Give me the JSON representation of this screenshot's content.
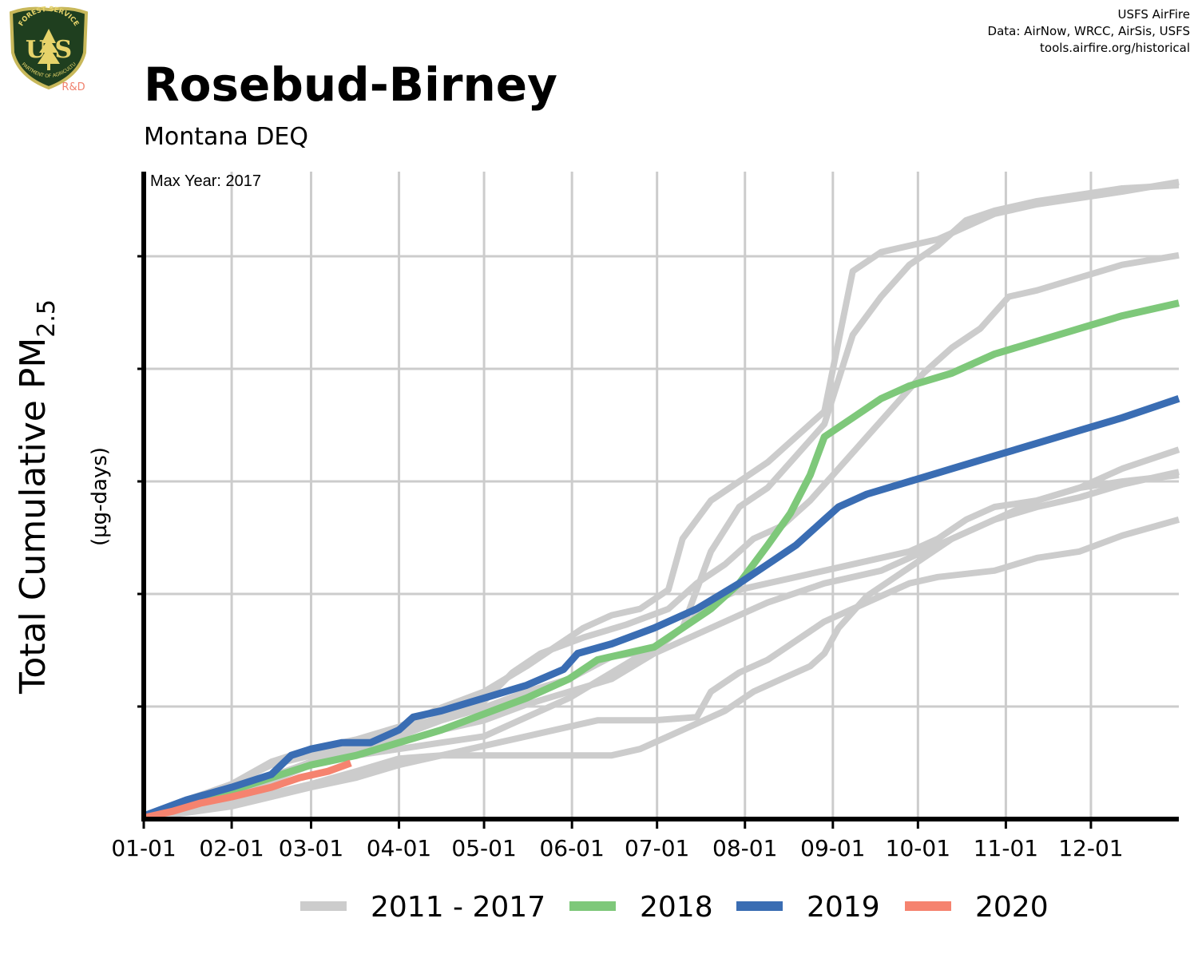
{
  "header": {
    "title": "Rosebud-Birney",
    "subtitle": "Montana DEQ",
    "credit_lines": [
      "USFS AirFire",
      "Data: AirNow, WRCC, AirSis, USFS",
      "tools.airfire.org/historical"
    ]
  },
  "logo": {
    "top_text": "FOREST SERVICE",
    "shield_text": "U S",
    "bottom_text": "DEPARTMENT OF AGRICULTURE",
    "tag": "R&D",
    "colors": {
      "shield": "#1f3f1f",
      "border": "#c8b85a",
      "tree": "#e6d36a",
      "tag": "#f0826e"
    }
  },
  "chart_data": {
    "type": "line",
    "title": "Rosebud-Birney",
    "subtitle": "Montana DEQ",
    "annotation": "Max Year: 2017",
    "ylabel": "Total Cumulative PM",
    "ylabel_subscript": "2.5",
    "yunits": "(µg-days)",
    "x_ticks": [
      "01-01",
      "02-01",
      "03-01",
      "04-01",
      "05-01",
      "06-01",
      "07-01",
      "08-01",
      "09-01",
      "10-01",
      "11-01",
      "12-01"
    ],
    "x_tick_days": [
      0,
      31,
      59,
      90,
      120,
      151,
      181,
      212,
      243,
      273,
      304,
      334
    ],
    "xlim": [
      0,
      365
    ],
    "ylim": [
      0,
      1
    ],
    "y_tick_count": 5,
    "grid": true,
    "legend_position": "bottom",
    "legend": [
      {
        "label": "2011 - 2017",
        "color": "#cccccc"
      },
      {
        "label": "2018",
        "color": "#7ec87a"
      },
      {
        "label": "2019",
        "color": "#3a6db3"
      },
      {
        "label": "2020",
        "color": "#f5836f"
      }
    ],
    "series": [
      {
        "group": "2011 - 2017",
        "color": "#cccccc",
        "points": [
          [
            0,
            0.005
          ],
          [
            10,
            0.02
          ],
          [
            20,
            0.035
          ],
          [
            31,
            0.055
          ],
          [
            45,
            0.09
          ],
          [
            59,
            0.11
          ],
          [
            75,
            0.125
          ],
          [
            90,
            0.145
          ],
          [
            105,
            0.175
          ],
          [
            120,
            0.2
          ],
          [
            135,
            0.24
          ],
          [
            145,
            0.27
          ],
          [
            155,
            0.3
          ],
          [
            165,
            0.32
          ],
          [
            175,
            0.33
          ],
          [
            185,
            0.36
          ],
          [
            190,
            0.44
          ],
          [
            200,
            0.5
          ],
          [
            210,
            0.53
          ],
          [
            220,
            0.56
          ],
          [
            230,
            0.6
          ],
          [
            240,
            0.64
          ],
          [
            250,
            0.86
          ],
          [
            260,
            0.89
          ],
          [
            270,
            0.9
          ],
          [
            280,
            0.91
          ],
          [
            290,
            0.93
          ],
          [
            300,
            0.95
          ],
          [
            315,
            0.965
          ],
          [
            330,
            0.975
          ],
          [
            345,
            0.985
          ],
          [
            365,
            1.0
          ]
        ]
      },
      {
        "group": "2011 - 2017",
        "color": "#cccccc",
        "points": [
          [
            0,
            0.005
          ],
          [
            15,
            0.025
          ],
          [
            31,
            0.045
          ],
          [
            50,
            0.075
          ],
          [
            59,
            0.09
          ],
          [
            75,
            0.11
          ],
          [
            90,
            0.13
          ],
          [
            105,
            0.155
          ],
          [
            120,
            0.175
          ],
          [
            135,
            0.2
          ],
          [
            150,
            0.22
          ],
          [
            165,
            0.255
          ],
          [
            180,
            0.265
          ],
          [
            190,
            0.3
          ],
          [
            200,
            0.42
          ],
          [
            210,
            0.49
          ],
          [
            220,
            0.52
          ],
          [
            230,
            0.57
          ],
          [
            240,
            0.62
          ],
          [
            250,
            0.76
          ],
          [
            260,
            0.82
          ],
          [
            270,
            0.87
          ],
          [
            280,
            0.9
          ],
          [
            290,
            0.94
          ],
          [
            300,
            0.955
          ],
          [
            315,
            0.97
          ],
          [
            330,
            0.98
          ],
          [
            345,
            0.99
          ],
          [
            365,
            0.995
          ]
        ]
      },
      {
        "group": "2011 - 2017",
        "color": "#cccccc",
        "points": [
          [
            0,
            0.005
          ],
          [
            15,
            0.03
          ],
          [
            31,
            0.055
          ],
          [
            45,
            0.085
          ],
          [
            59,
            0.1
          ],
          [
            75,
            0.12
          ],
          [
            90,
            0.14
          ],
          [
            105,
            0.16
          ],
          [
            120,
            0.185
          ],
          [
            130,
            0.23
          ],
          [
            140,
            0.26
          ],
          [
            155,
            0.285
          ],
          [
            170,
            0.305
          ],
          [
            185,
            0.33
          ],
          [
            195,
            0.37
          ],
          [
            205,
            0.4
          ],
          [
            215,
            0.44
          ],
          [
            225,
            0.46
          ],
          [
            235,
            0.5
          ],
          [
            245,
            0.55
          ],
          [
            255,
            0.6
          ],
          [
            265,
            0.65
          ],
          [
            275,
            0.7
          ],
          [
            285,
            0.74
          ],
          [
            295,
            0.77
          ],
          [
            305,
            0.82
          ],
          [
            315,
            0.83
          ],
          [
            330,
            0.85
          ],
          [
            345,
            0.87
          ],
          [
            365,
            0.885
          ]
        ]
      },
      {
        "group": "2011 - 2017",
        "color": "#cccccc",
        "points": [
          [
            0,
            0.003
          ],
          [
            15,
            0.02
          ],
          [
            31,
            0.04
          ],
          [
            45,
            0.065
          ],
          [
            59,
            0.09
          ],
          [
            75,
            0.11
          ],
          [
            90,
            0.12
          ],
          [
            105,
            0.14
          ],
          [
            120,
            0.155
          ],
          [
            135,
            0.18
          ],
          [
            150,
            0.2
          ],
          [
            165,
            0.22
          ],
          [
            180,
            0.26
          ],
          [
            190,
            0.28
          ],
          [
            200,
            0.3
          ],
          [
            210,
            0.32
          ],
          [
            220,
            0.34
          ],
          [
            230,
            0.355
          ],
          [
            240,
            0.37
          ],
          [
            250,
            0.38
          ],
          [
            260,
            0.39
          ],
          [
            270,
            0.41
          ],
          [
            280,
            0.43
          ],
          [
            290,
            0.45
          ],
          [
            300,
            0.47
          ],
          [
            315,
            0.49
          ],
          [
            330,
            0.505
          ],
          [
            345,
            0.525
          ],
          [
            365,
            0.545
          ]
        ]
      },
      {
        "group": "2011 - 2017",
        "color": "#cccccc",
        "points": [
          [
            0,
            0.003
          ],
          [
            15,
            0.018
          ],
          [
            31,
            0.04
          ],
          [
            45,
            0.06
          ],
          [
            59,
            0.085
          ],
          [
            75,
            0.1
          ],
          [
            90,
            0.11
          ],
          [
            105,
            0.12
          ],
          [
            120,
            0.13
          ],
          [
            135,
            0.16
          ],
          [
            150,
            0.19
          ],
          [
            165,
            0.23
          ],
          [
            180,
            0.27
          ],
          [
            190,
            0.3
          ],
          [
            200,
            0.34
          ],
          [
            210,
            0.36
          ],
          [
            220,
            0.37
          ],
          [
            230,
            0.38
          ],
          [
            240,
            0.39
          ],
          [
            250,
            0.4
          ],
          [
            260,
            0.41
          ],
          [
            270,
            0.42
          ],
          [
            280,
            0.44
          ],
          [
            290,
            0.47
          ],
          [
            300,
            0.49
          ],
          [
            315,
            0.5
          ],
          [
            330,
            0.52
          ],
          [
            345,
            0.53
          ],
          [
            365,
            0.54
          ]
        ]
      },
      {
        "group": "2011 - 2017",
        "color": "#cccccc",
        "points": [
          [
            0,
            0.002
          ],
          [
            15,
            0.012
          ],
          [
            31,
            0.025
          ],
          [
            45,
            0.04
          ],
          [
            59,
            0.055
          ],
          [
            75,
            0.075
          ],
          [
            90,
            0.095
          ],
          [
            105,
            0.1
          ],
          [
            120,
            0.1
          ],
          [
            135,
            0.1
          ],
          [
            150,
            0.1
          ],
          [
            165,
            0.1
          ],
          [
            175,
            0.11
          ],
          [
            185,
            0.13
          ],
          [
            195,
            0.15
          ],
          [
            205,
            0.17
          ],
          [
            215,
            0.2
          ],
          [
            225,
            0.22
          ],
          [
            235,
            0.24
          ],
          [
            240,
            0.26
          ],
          [
            245,
            0.3
          ],
          [
            255,
            0.35
          ],
          [
            265,
            0.38
          ],
          [
            275,
            0.41
          ],
          [
            285,
            0.44
          ],
          [
            295,
            0.46
          ],
          [
            305,
            0.48
          ],
          [
            315,
            0.5
          ],
          [
            330,
            0.52
          ],
          [
            345,
            0.55
          ],
          [
            365,
            0.58
          ]
        ]
      },
      {
        "group": "2011 - 2017",
        "color": "#cccccc",
        "points": [
          [
            0,
            0.002
          ],
          [
            15,
            0.01
          ],
          [
            31,
            0.02
          ],
          [
            45,
            0.035
          ],
          [
            59,
            0.05
          ],
          [
            75,
            0.065
          ],
          [
            90,
            0.085
          ],
          [
            105,
            0.1
          ],
          [
            120,
            0.115
          ],
          [
            135,
            0.13
          ],
          [
            150,
            0.145
          ],
          [
            160,
            0.155
          ],
          [
            170,
            0.155
          ],
          [
            180,
            0.155
          ],
          [
            195,
            0.16
          ],
          [
            200,
            0.2
          ],
          [
            210,
            0.23
          ],
          [
            220,
            0.25
          ],
          [
            230,
            0.28
          ],
          [
            240,
            0.31
          ],
          [
            250,
            0.33
          ],
          [
            260,
            0.35
          ],
          [
            270,
            0.37
          ],
          [
            280,
            0.38
          ],
          [
            290,
            0.385
          ],
          [
            300,
            0.39
          ],
          [
            315,
            0.41
          ],
          [
            330,
            0.42
          ],
          [
            345,
            0.445
          ],
          [
            365,
            0.47
          ]
        ]
      },
      {
        "group": "2018",
        "color": "#7ec87a",
        "points": [
          [
            0,
            0.003
          ],
          [
            15,
            0.025
          ],
          [
            31,
            0.045
          ],
          [
            45,
            0.065
          ],
          [
            59,
            0.085
          ],
          [
            75,
            0.1
          ],
          [
            90,
            0.12
          ],
          [
            105,
            0.14
          ],
          [
            120,
            0.165
          ],
          [
            135,
            0.19
          ],
          [
            150,
            0.22
          ],
          [
            160,
            0.25
          ],
          [
            170,
            0.26
          ],
          [
            180,
            0.27
          ],
          [
            190,
            0.3
          ],
          [
            200,
            0.33
          ],
          [
            210,
            0.37
          ],
          [
            220,
            0.43
          ],
          [
            228,
            0.48
          ],
          [
            235,
            0.54
          ],
          [
            240,
            0.6
          ],
          [
            250,
            0.63
          ],
          [
            260,
            0.66
          ],
          [
            270,
            0.68
          ],
          [
            285,
            0.7
          ],
          [
            300,
            0.73
          ],
          [
            315,
            0.75
          ],
          [
            330,
            0.77
          ],
          [
            345,
            0.79
          ],
          [
            365,
            0.81
          ]
        ]
      },
      {
        "group": "2019",
        "color": "#3a6db3",
        "points": [
          [
            0,
            0.005
          ],
          [
            15,
            0.03
          ],
          [
            31,
            0.05
          ],
          [
            45,
            0.07
          ],
          [
            52,
            0.1
          ],
          [
            59,
            0.11
          ],
          [
            70,
            0.12
          ],
          [
            80,
            0.12
          ],
          [
            90,
            0.14
          ],
          [
            95,
            0.16
          ],
          [
            105,
            0.17
          ],
          [
            120,
            0.19
          ],
          [
            135,
            0.21
          ],
          [
            148,
            0.235
          ],
          [
            153,
            0.26
          ],
          [
            165,
            0.275
          ],
          [
            180,
            0.3
          ],
          [
            195,
            0.33
          ],
          [
            210,
            0.37
          ],
          [
            220,
            0.4
          ],
          [
            230,
            0.43
          ],
          [
            240,
            0.47
          ],
          [
            245,
            0.49
          ],
          [
            255,
            0.51
          ],
          [
            270,
            0.53
          ],
          [
            285,
            0.55
          ],
          [
            300,
            0.57
          ],
          [
            315,
            0.59
          ],
          [
            330,
            0.61
          ],
          [
            345,
            0.63
          ],
          [
            365,
            0.66
          ]
        ]
      },
      {
        "group": "2020",
        "color": "#f5836f",
        "points": [
          [
            0,
            0.002
          ],
          [
            10,
            0.012
          ],
          [
            20,
            0.025
          ],
          [
            31,
            0.035
          ],
          [
            45,
            0.05
          ],
          [
            55,
            0.065
          ],
          [
            65,
            0.075
          ],
          [
            73,
            0.088
          ]
        ]
      }
    ]
  }
}
